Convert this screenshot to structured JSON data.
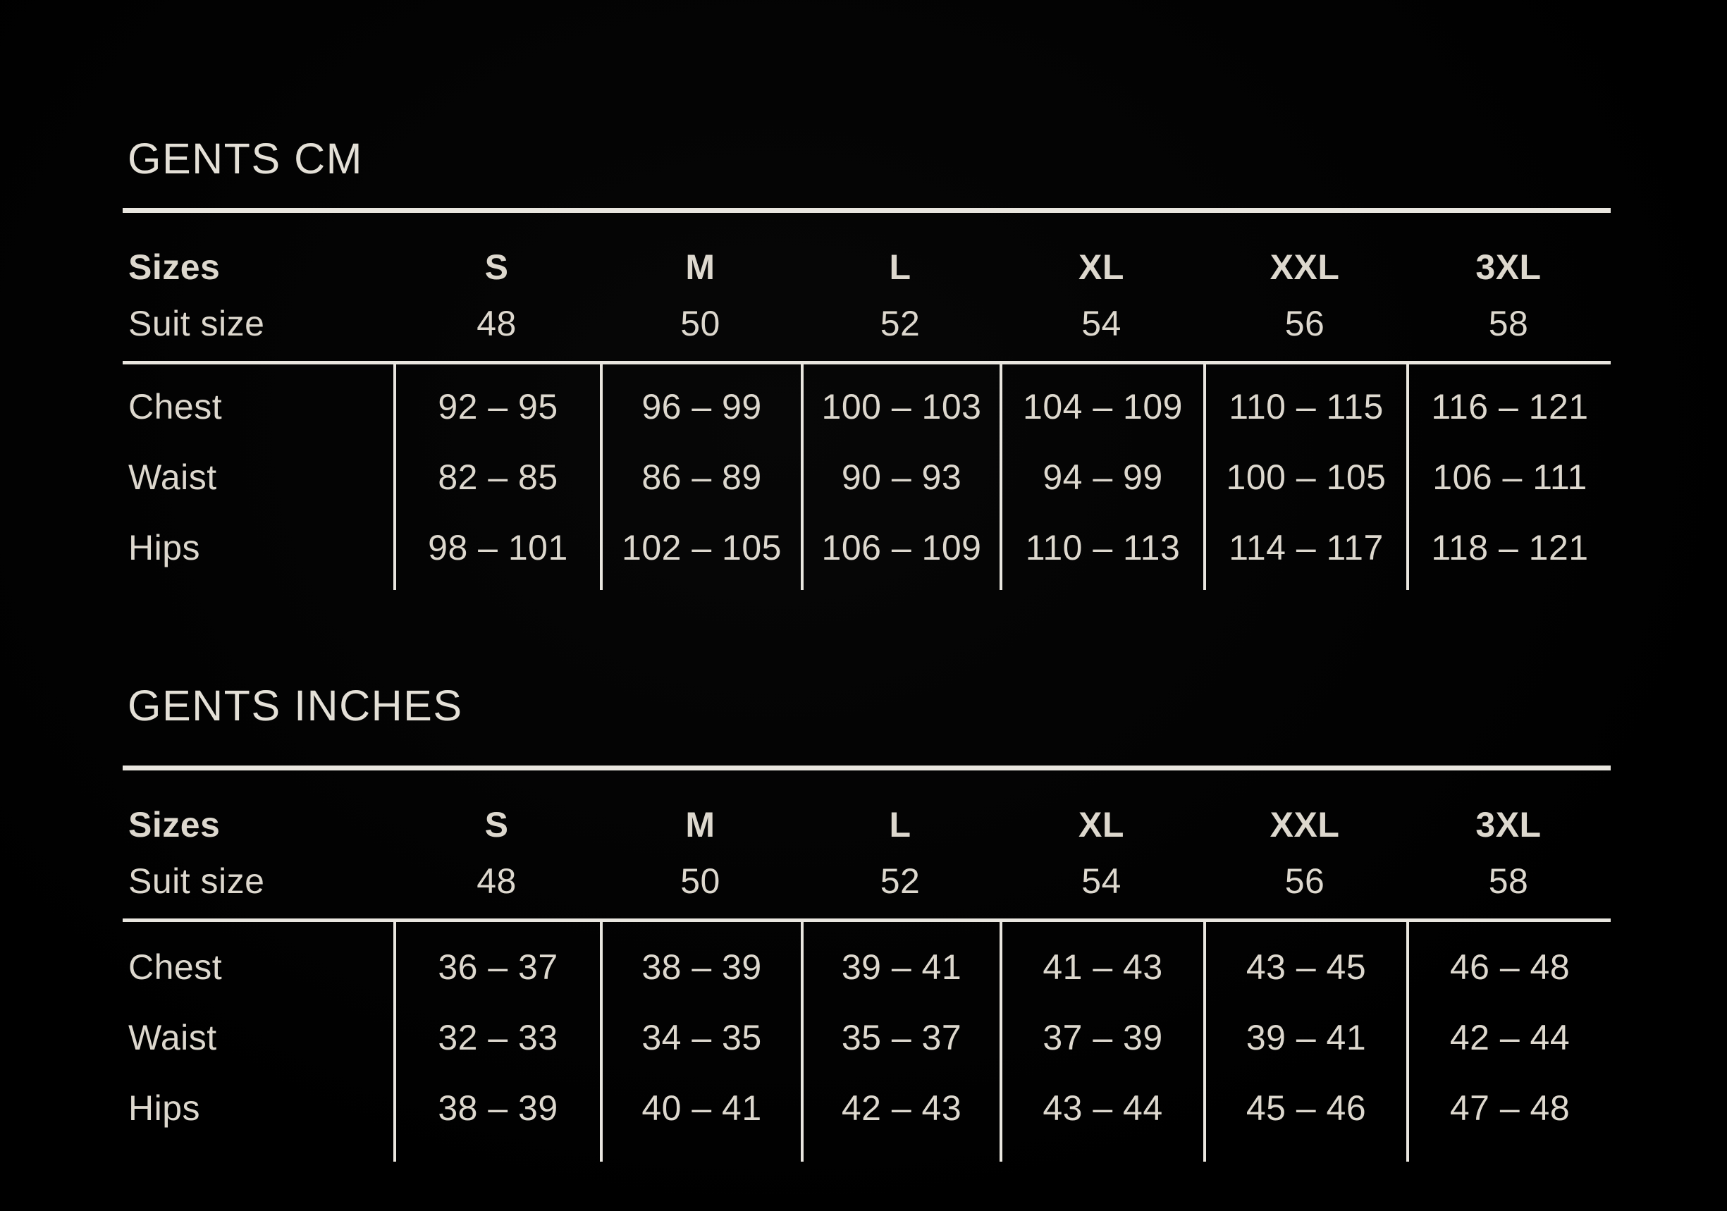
{
  "colors": {
    "background": "#000000",
    "text": "#ddd8ce",
    "line": "#e9e6df"
  },
  "tables": [
    {
      "title": "GENTS CM",
      "sizes_label": "Sizes",
      "suit_size_label": "Suit size",
      "size_names": [
        "S",
        "M",
        "L",
        "XL",
        "XXL",
        "3XL"
      ],
      "suit_sizes": [
        "48",
        "50",
        "52",
        "54",
        "56",
        "58"
      ],
      "rows": [
        {
          "label": "Chest",
          "values": [
            "92 – 95",
            "96 – 99",
            "100 – 103",
            "104 – 109",
            "110 – 115",
            "116 – 121"
          ]
        },
        {
          "label": "Waist",
          "values": [
            "82 – 85",
            "86 – 89",
            "90 – 93",
            "94 – 99",
            "100 – 105",
            "106 – 111"
          ]
        },
        {
          "label": "Hips",
          "values": [
            "98 – 101",
            "102 – 105",
            "106 – 109",
            "110 – 113",
            "114 – 117",
            "118 – 121"
          ]
        }
      ]
    },
    {
      "title": "GENTS INCHES",
      "sizes_label": "Sizes",
      "suit_size_label": "Suit size",
      "size_names": [
        "S",
        "M",
        "L",
        "XL",
        "XXL",
        "3XL"
      ],
      "suit_sizes": [
        "48",
        "50",
        "52",
        "54",
        "56",
        "58"
      ],
      "rows": [
        {
          "label": "Chest",
          "values": [
            "36 – 37",
            "38 – 39",
            "39 – 41",
            "41 – 43",
            "43 – 45",
            "46 – 48"
          ]
        },
        {
          "label": "Waist",
          "values": [
            "32 – 33",
            "34 – 35",
            "35 – 37",
            "37 – 39",
            "39 – 41",
            "42 – 44"
          ]
        },
        {
          "label": "Hips",
          "values": [
            "38 – 39",
            "40 – 41",
            "42 – 43",
            "43 – 44",
            "45 – 46",
            "47 – 48"
          ]
        }
      ]
    }
  ]
}
